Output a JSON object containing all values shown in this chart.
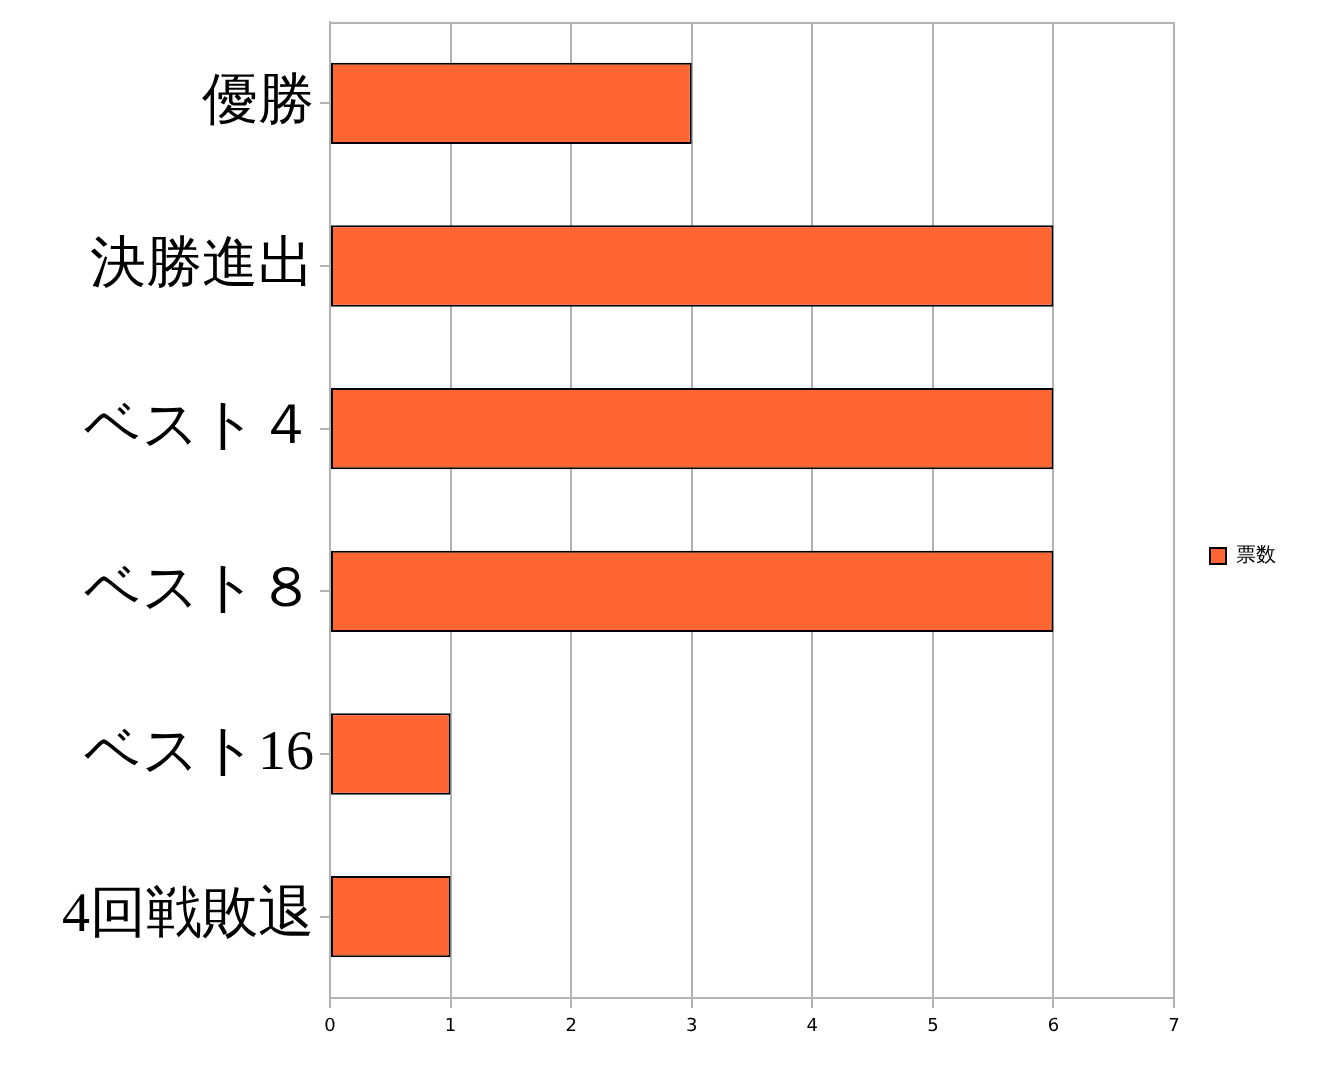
{
  "chart_data": {
    "type": "bar",
    "orientation": "horizontal",
    "categories": [
      "優勝",
      "決勝進出",
      "ベスト４",
      "ベスト８",
      "ベスト16",
      "4回戦敗退"
    ],
    "series": [
      {
        "name": "票数",
        "color": "#ff6633",
        "values": [
          3,
          6,
          6,
          6,
          1,
          1
        ]
      }
    ],
    "xlim": [
      0,
      7
    ],
    "xticks": [
      0,
      1,
      2,
      3,
      4,
      5,
      6,
      7
    ],
    "grid": "x",
    "legend": "right"
  }
}
